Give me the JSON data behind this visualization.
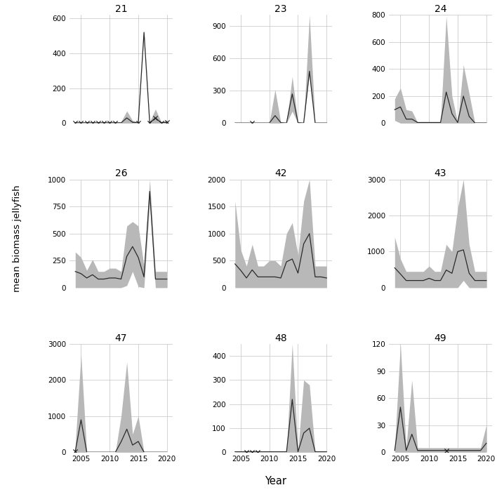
{
  "panels": [
    {
      "title": "21",
      "years": [
        2004,
        2005,
        2006,
        2007,
        2008,
        2009,
        2010,
        2011,
        2012,
        2013,
        2014,
        2015,
        2016,
        2017,
        2018,
        2019,
        2020
      ],
      "mean": [
        2,
        2,
        2,
        2,
        2,
        2,
        2,
        2,
        2,
        30,
        5,
        2,
        520,
        2,
        30,
        2,
        5
      ],
      "sd_upper": [
        8,
        8,
        8,
        8,
        8,
        8,
        8,
        8,
        8,
        70,
        15,
        8,
        530,
        8,
        80,
        8,
        15
      ],
      "sd_lower": [
        0,
        0,
        0,
        0,
        0,
        0,
        0,
        0,
        0,
        0,
        0,
        0,
        510,
        0,
        0,
        0,
        0
      ],
      "low_sample_years": [
        2004,
        2005,
        2006,
        2007,
        2008,
        2009,
        2010,
        2011,
        2015,
        2017,
        2018,
        2019,
        2020
      ],
      "low_sample_vals": [
        2,
        2,
        2,
        2,
        2,
        2,
        2,
        2,
        2,
        2,
        30,
        2,
        5
      ],
      "ylim": [
        0,
        620
      ],
      "yticks": [
        0,
        200,
        400,
        600
      ]
    },
    {
      "title": "23",
      "years": [
        2004,
        2005,
        2006,
        2007,
        2008,
        2009,
        2010,
        2011,
        2012,
        2013,
        2014,
        2015,
        2016,
        2017,
        2018,
        2019,
        2020
      ],
      "mean": [
        2,
        2,
        2,
        2,
        2,
        2,
        2,
        70,
        5,
        2,
        270,
        5,
        2,
        480,
        2,
        2,
        2
      ],
      "sd_upper": [
        2,
        2,
        2,
        2,
        2,
        2,
        2,
        310,
        5,
        2,
        430,
        5,
        2,
        1000,
        2,
        2,
        2
      ],
      "sd_lower": [
        0,
        0,
        0,
        0,
        0,
        0,
        0,
        0,
        0,
        0,
        110,
        0,
        0,
        460,
        0,
        0,
        0
      ],
      "low_sample_years": [
        2007
      ],
      "low_sample_vals": [
        2
      ],
      "ylim": [
        0,
        1000
      ],
      "yticks": [
        0,
        300,
        600,
        900
      ]
    },
    {
      "title": "24",
      "years": [
        2004,
        2005,
        2006,
        2007,
        2008,
        2009,
        2010,
        2011,
        2012,
        2013,
        2014,
        2015,
        2016,
        2017,
        2018,
        2019,
        2020
      ],
      "mean": [
        100,
        120,
        30,
        30,
        5,
        5,
        5,
        5,
        5,
        230,
        70,
        5,
        200,
        50,
        2,
        2,
        2
      ],
      "sd_upper": [
        180,
        260,
        100,
        90,
        5,
        5,
        5,
        5,
        5,
        790,
        200,
        5,
        430,
        220,
        2,
        2,
        2
      ],
      "sd_lower": [
        20,
        0,
        0,
        0,
        0,
        0,
        0,
        0,
        0,
        0,
        0,
        0,
        0,
        0,
        0,
        0,
        0
      ],
      "low_sample_years": [],
      "low_sample_vals": [],
      "ylim": [
        0,
        800
      ],
      "yticks": [
        0,
        200,
        400,
        600,
        800
      ]
    },
    {
      "title": "26",
      "years": [
        2004,
        2005,
        2006,
        2007,
        2008,
        2009,
        2010,
        2011,
        2012,
        2013,
        2014,
        2015,
        2016,
        2017,
        2018,
        2019,
        2020
      ],
      "mean": [
        150,
        130,
        90,
        120,
        80,
        80,
        90,
        90,
        80,
        290,
        380,
        280,
        100,
        890,
        80,
        80,
        80
      ],
      "sd_upper": [
        330,
        280,
        160,
        260,
        150,
        150,
        180,
        180,
        150,
        570,
        610,
        570,
        200,
        1000,
        150,
        150,
        150
      ],
      "sd_lower": [
        0,
        0,
        0,
        0,
        0,
        0,
        0,
        0,
        0,
        20,
        150,
        10,
        0,
        780,
        0,
        0,
        0
      ],
      "low_sample_years": [],
      "low_sample_vals": [],
      "ylim": [
        0,
        1000
      ],
      "yticks": [
        0,
        250,
        500,
        750,
        1000
      ]
    },
    {
      "title": "42",
      "years": [
        2004,
        2005,
        2006,
        2007,
        2008,
        2009,
        2010,
        2011,
        2012,
        2013,
        2014,
        2015,
        2016,
        2017,
        2018,
        2019,
        2020
      ],
      "mean": [
        440,
        320,
        180,
        330,
        200,
        200,
        200,
        200,
        180,
        480,
        530,
        270,
        810,
        1000,
        200,
        200,
        180
      ],
      "sd_upper": [
        1600,
        700,
        400,
        800,
        400,
        400,
        500,
        500,
        400,
        1000,
        1200,
        600,
        1600,
        2000,
        400,
        400,
        400
      ],
      "sd_lower": [
        0,
        0,
        0,
        0,
        0,
        0,
        0,
        0,
        0,
        0,
        0,
        0,
        0,
        0,
        0,
        0,
        0
      ],
      "low_sample_years": [],
      "low_sample_vals": [],
      "ylim": [
        0,
        2000
      ],
      "yticks": [
        0,
        500,
        1000,
        1500,
        2000
      ]
    },
    {
      "title": "43",
      "years": [
        2004,
        2005,
        2006,
        2007,
        2008,
        2009,
        2010,
        2011,
        2012,
        2013,
        2014,
        2015,
        2016,
        2017,
        2018,
        2019,
        2020
      ],
      "mean": [
        550,
        380,
        200,
        200,
        200,
        200,
        260,
        200,
        200,
        490,
        400,
        1000,
        1050,
        400,
        200,
        200,
        200
      ],
      "sd_upper": [
        1400,
        800,
        450,
        450,
        450,
        450,
        600,
        450,
        450,
        1200,
        1000,
        2200,
        3000,
        1200,
        450,
        450,
        450
      ],
      "sd_lower": [
        0,
        0,
        0,
        0,
        0,
        0,
        0,
        0,
        0,
        0,
        0,
        0,
        200,
        0,
        0,
        0,
        0
      ],
      "low_sample_years": [],
      "low_sample_vals": [],
      "ylim": [
        0,
        3000
      ],
      "yticks": [
        0,
        1000,
        2000,
        3000
      ]
    },
    {
      "title": "47",
      "years": [
        2004,
        2005,
        2006,
        2007,
        2008,
        2009,
        2010,
        2011,
        2012,
        2013,
        2014,
        2015,
        2016,
        2017,
        2018,
        2019,
        2020
      ],
      "mean": [
        30,
        900,
        2,
        2,
        2,
        2,
        2,
        2,
        290,
        640,
        200,
        300,
        2,
        2,
        2,
        2,
        2
      ],
      "sd_upper": [
        200,
        2700,
        2,
        2,
        2,
        2,
        2,
        2,
        1000,
        2500,
        500,
        1000,
        2,
        2,
        2,
        2,
        2
      ],
      "sd_lower": [
        0,
        0,
        0,
        0,
        0,
        0,
        0,
        0,
        0,
        0,
        0,
        0,
        0,
        0,
        0,
        0,
        0
      ],
      "low_sample_years": [
        2004
      ],
      "low_sample_vals": [
        30
      ],
      "ylim": [
        0,
        3000
      ],
      "yticks": [
        0,
        1000,
        2000,
        3000
      ]
    },
    {
      "title": "48",
      "years": [
        2004,
        2005,
        2006,
        2007,
        2008,
        2009,
        2010,
        2011,
        2012,
        2013,
        2014,
        2015,
        2016,
        2017,
        2018,
        2019,
        2020
      ],
      "mean": [
        2,
        2,
        2,
        2,
        2,
        2,
        2,
        2,
        2,
        2,
        220,
        2,
        80,
        100,
        2,
        2,
        2
      ],
      "sd_upper": [
        2,
        2,
        2,
        2,
        2,
        2,
        2,
        2,
        2,
        2,
        450,
        2,
        300,
        280,
        2,
        2,
        2
      ],
      "sd_lower": [
        0,
        0,
        0,
        0,
        0,
        0,
        0,
        0,
        0,
        0,
        0,
        0,
        0,
        0,
        0,
        0,
        0
      ],
      "low_sample_years": [
        2006,
        2007,
        2008
      ],
      "low_sample_vals": [
        2,
        2,
        2
      ],
      "ylim": [
        0,
        450
      ],
      "yticks": [
        0,
        100,
        200,
        300,
        400
      ]
    },
    {
      "title": "49",
      "years": [
        2004,
        2005,
        2006,
        2007,
        2008,
        2009,
        2010,
        2011,
        2012,
        2013,
        2014,
        2015,
        2016,
        2017,
        2018,
        2019,
        2020
      ],
      "mean": [
        2,
        50,
        2,
        20,
        2,
        2,
        2,
        2,
        2,
        2,
        2,
        2,
        2,
        2,
        2,
        2,
        10
      ],
      "sd_upper": [
        5,
        120,
        5,
        80,
        5,
        5,
        5,
        5,
        5,
        5,
        5,
        5,
        5,
        5,
        5,
        5,
        30
      ],
      "sd_lower": [
        0,
        0,
        0,
        0,
        0,
        0,
        0,
        0,
        0,
        0,
        0,
        0,
        0,
        0,
        0,
        0,
        0
      ],
      "low_sample_years": [
        2013
      ],
      "low_sample_vals": [
        2
      ],
      "ylim": [
        0,
        120
      ],
      "yticks": [
        0,
        30,
        60,
        90,
        120
      ]
    }
  ],
  "ylabel": "mean biomass jellyfish",
  "xlabel": "Year",
  "bg_color": "#ffffff",
  "grid_color": "#cccccc",
  "fill_color": "#b8b8b8",
  "line_color": "#2a2a2a",
  "star_color": "#1a1a1a"
}
